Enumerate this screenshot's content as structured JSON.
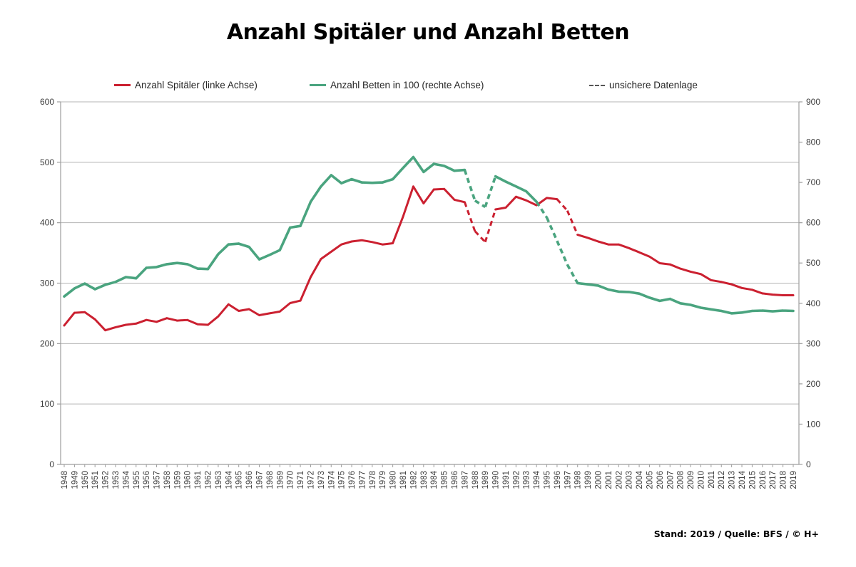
{
  "title": "Anzahl Spitäler und Anzahl Betten",
  "footer": "Stand: 2019 / Quelle: BFS / © H+",
  "colors": {
    "spitaeler_red": "#cb2030",
    "betten_green": "#4aa47f",
    "grid": "#b5b5b5",
    "axis": "#9e9e9e",
    "tick_text": "#3c3c3c",
    "uncertain_gray": "#555555"
  },
  "legend": [
    {
      "label": "Anzahl Spitäler (linke Achse)",
      "color": "#cb2030",
      "dashed": false
    },
    {
      "label": "Anzahl Betten in 100 (rechte Achse)",
      "color": "#4aa47f",
      "dashed": false
    },
    {
      "label": "unsichere Datenlage",
      "color": "#555555",
      "dashed": true
    }
  ],
  "chart_data": {
    "type": "line",
    "title": "Anzahl Spitäler und Anzahl Betten",
    "x": [
      1948,
      1949,
      1950,
      1951,
      1952,
      1953,
      1954,
      1955,
      1956,
      1957,
      1958,
      1959,
      1960,
      1961,
      1962,
      1963,
      1964,
      1965,
      1966,
      1967,
      1968,
      1969,
      1970,
      1971,
      1972,
      1973,
      1974,
      1975,
      1976,
      1977,
      1978,
      1979,
      1980,
      1981,
      1982,
      1983,
      1984,
      1985,
      1986,
      1987,
      1988,
      1989,
      1990,
      1991,
      1992,
      1993,
      1994,
      1995,
      1996,
      1997,
      1998,
      1999,
      2000,
      2001,
      2002,
      2003,
      2004,
      2005,
      2006,
      2007,
      2008,
      2009,
      2010,
      2011,
      2012,
      2013,
      2014,
      2015,
      2016,
      2017,
      2018,
      2019
    ],
    "left_axis": {
      "min": 0,
      "max": 600,
      "step": 100,
      "ticks": [
        0,
        100,
        200,
        300,
        400,
        500,
        600
      ]
    },
    "right_axis": {
      "min": 0,
      "max": 900,
      "step": 100,
      "ticks": [
        0,
        100,
        200,
        300,
        400,
        500,
        600,
        700,
        800,
        900
      ]
    },
    "grid": true,
    "legend_position": "top",
    "dashed_meaning": "unsichere Datenlage",
    "series": [
      {
        "key": "spitaeler",
        "name": "Anzahl Spitäler (linke Achse)",
        "axis": "left",
        "color": "#cb2030",
        "width": 3,
        "dashed_ranges": [
          [
            1987,
            1990
          ],
          [
            1996,
            1998
          ]
        ],
        "values": [
          230,
          251,
          252,
          240,
          222,
          227,
          231,
          233,
          239,
          236,
          242,
          238,
          239,
          232,
          231,
          245,
          265,
          254,
          257,
          247,
          250,
          253,
          267,
          271,
          310,
          340,
          352,
          364,
          369,
          371,
          368,
          364,
          366,
          410,
          460,
          432,
          455,
          456,
          438,
          434,
          386,
          368,
          422,
          425,
          443,
          437,
          429,
          441,
          439,
          420,
          380,
          375,
          369,
          364,
          364,
          358,
          351,
          344,
          333,
          331,
          324,
          319,
          315,
          305,
          302,
          298,
          292,
          289,
          283,
          281,
          280,
          280
        ]
      },
      {
        "key": "betten",
        "name": "Anzahl Betten in 100 (rechte Achse)",
        "axis": "right",
        "color": "#4aa47f",
        "width": 3.6,
        "dashed_ranges": [
          [
            1987,
            1990
          ],
          [
            1994,
            1998
          ]
        ],
        "values": [
          417,
          437,
          449,
          435,
          446,
          453,
          465,
          462,
          488,
          490,
          497,
          500,
          497,
          486,
          485,
          522,
          546,
          548,
          540,
          509,
          520,
          532,
          588,
          592,
          652,
          690,
          718,
          698,
          708,
          700,
          699,
          700,
          708,
          736,
          763,
          726,
          746,
          741,
          729,
          731,
          655,
          639,
          715,
          702,
          690,
          678,
          652,
          613,
          555,
          496,
          450,
          447,
          444,
          434,
          429,
          428,
          424,
          414,
          406,
          411,
          400,
          396,
          389,
          385,
          381,
          375,
          377,
          381,
          382,
          380,
          382,
          381
        ]
      }
    ]
  }
}
